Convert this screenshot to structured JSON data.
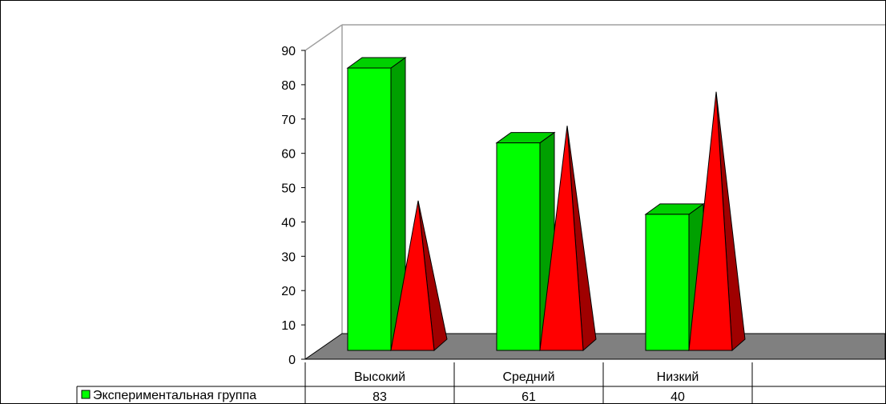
{
  "colors": {
    "series1": "#00ff00",
    "series1_side": "#00a000",
    "series1_top": "#00d000",
    "series2": "#ff0000",
    "series2_side": "#a00000",
    "floor": "#808080",
    "wall_line": "#a0a0a0"
  },
  "chart_data": {
    "type": "bar",
    "title": "",
    "xlabel": "",
    "ylabel": "",
    "ylim": [
      0,
      90
    ],
    "ytick_step": 10,
    "categories": [
      "Высокий",
      "Средний",
      "Низкий"
    ],
    "series": [
      {
        "name": "Экспериментальная группа",
        "shape": "3d-column",
        "values": [
          83,
          61,
          40
        ],
        "in_table": true
      },
      {
        "name": "",
        "shape": "3d-pyramid",
        "values": [
          44,
          66,
          76
        ],
        "in_table": false
      }
    ],
    "data_table": true,
    "legend_in_table": true
  }
}
